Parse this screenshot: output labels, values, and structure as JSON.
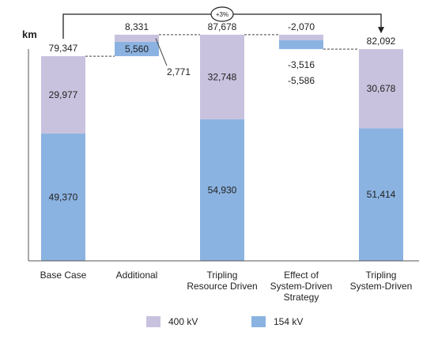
{
  "chart_data": {
    "type": "bar",
    "subtype": "waterfall-stacked",
    "unit_label": "km",
    "categories": [
      [
        "Base Case"
      ],
      [
        "Additional"
      ],
      [
        "Tripling",
        "Resource Driven"
      ],
      [
        "Effect of",
        "System-Driven",
        "Strategy"
      ],
      [
        "Tripling",
        "System-Driven"
      ]
    ],
    "series": [
      {
        "name": "154 kV",
        "color": "#8bb3e1",
        "values": [
          49370,
          5560,
          54930,
          -3516,
          51414
        ]
      },
      {
        "name": "400 kV",
        "color": "#c8c2de",
        "values": [
          29977,
          2771,
          32748,
          -2070,
          30678
        ]
      }
    ],
    "totals": [
      "79,347",
      "8,331",
      "87,678",
      "-5,586",
      "82,092"
    ],
    "segment_labels": {
      "low": [
        "49,370",
        "5,560",
        "54,930",
        "-3,516",
        "51,414"
      ],
      "high": [
        "29,977",
        "2,771",
        "32,748",
        "-2,070",
        "30,678"
      ]
    },
    "annotation": "+3%",
    "ylim": [
      0,
      95000
    ],
    "grid": false,
    "legend_position": "bottom"
  }
}
